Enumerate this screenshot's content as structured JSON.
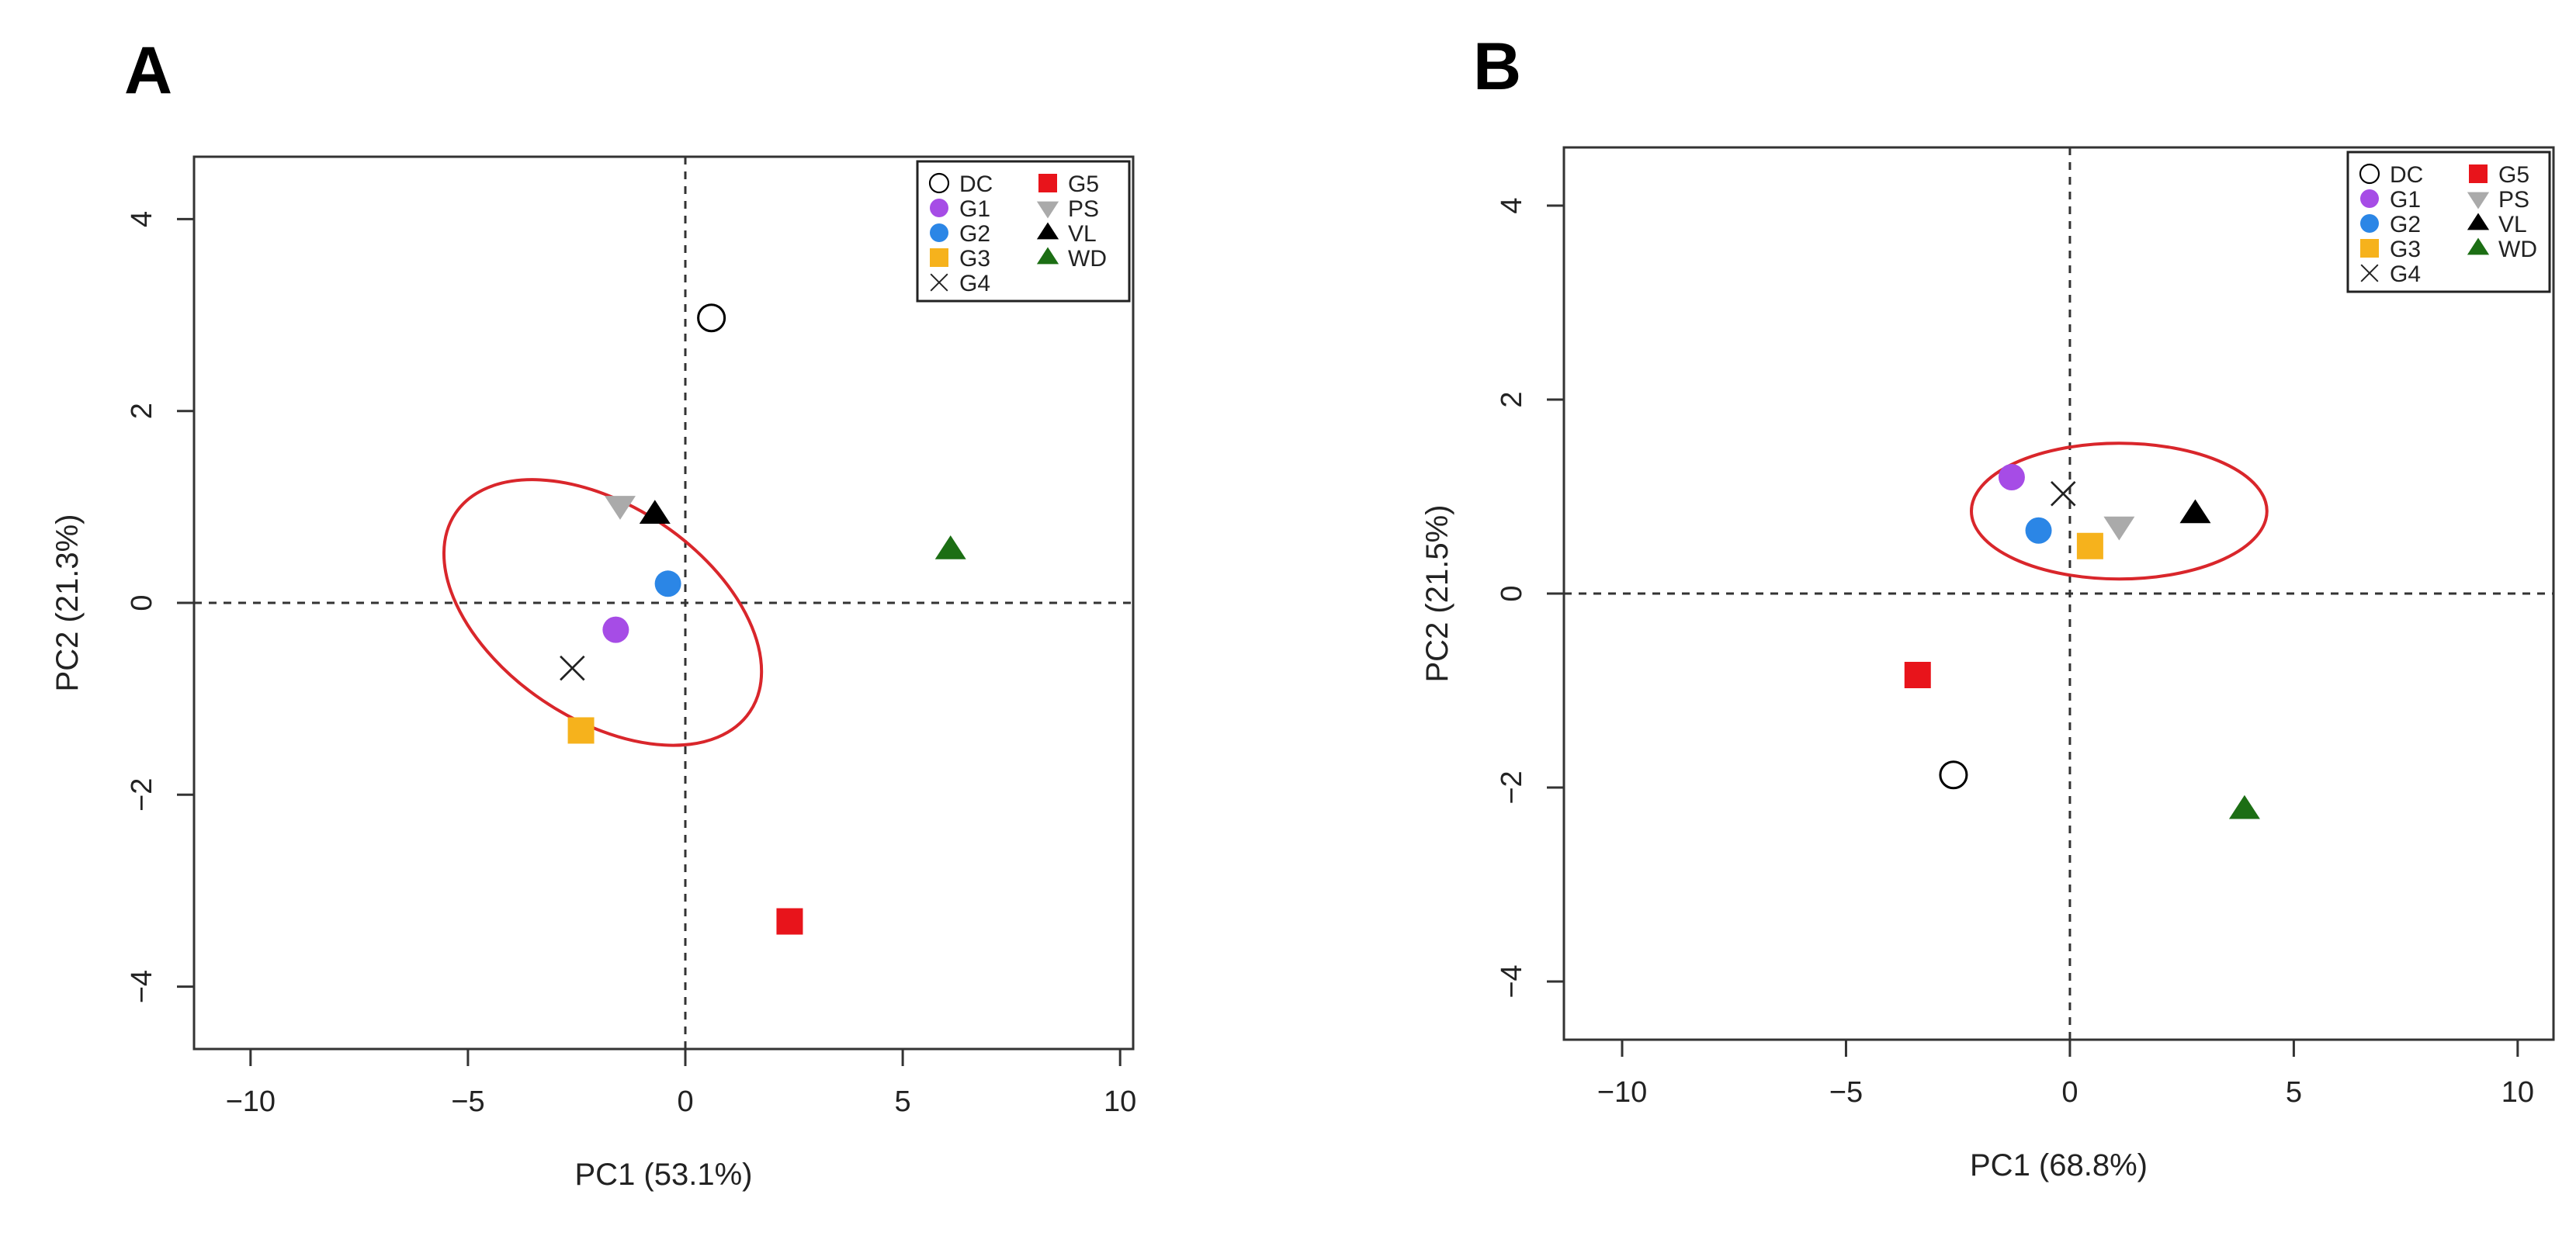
{
  "chart_data": [
    {
      "panel": "A",
      "type": "scatter",
      "xlabel": "PC1 (53.1%)",
      "ylabel": "PC2 (21.3%)",
      "xlim": [
        -11.3,
        10.3
      ],
      "ylim": [
        -4.65,
        4.65
      ],
      "xticks": [
        -10,
        -5,
        0,
        5,
        10
      ],
      "yticks": [
        -4,
        -2,
        0,
        2,
        4
      ],
      "legend_position": "top-right",
      "points": [
        {
          "label": "DC",
          "marker": "open-circle",
          "color": "#000000",
          "x": 0.6,
          "y": 2.97
        },
        {
          "label": "G1",
          "marker": "circle",
          "color": "#a64ce6",
          "x": -1.6,
          "y": -0.28
        },
        {
          "label": "G2",
          "marker": "circle",
          "color": "#2b86e6",
          "x": -0.4,
          "y": 0.2
        },
        {
          "label": "G3",
          "marker": "square",
          "color": "#f6b21c",
          "x": -2.4,
          "y": -1.33
        },
        {
          "label": "G4",
          "marker": "cross",
          "color": "#222222",
          "x": -2.6,
          "y": -0.68
        },
        {
          "label": "G5",
          "marker": "square",
          "color": "#e8141b",
          "x": 2.4,
          "y": -3.32
        },
        {
          "label": "PS",
          "marker": "triangle-down",
          "color": "#aaaaaa",
          "x": -1.5,
          "y": 1.02
        },
        {
          "label": "VL",
          "marker": "triangle",
          "color": "#000000",
          "x": -0.7,
          "y": 0.92
        },
        {
          "label": "WD",
          "marker": "triangle",
          "color": "#1c6e14",
          "x": 6.1,
          "y": 0.55
        }
      ],
      "ellipse": {
        "cx": -1.9,
        "cy": -0.1,
        "rx": 2.45,
        "ry": 1.85,
        "rotation_deg": -56,
        "color": "#d9262b"
      }
    },
    {
      "panel": "B",
      "type": "scatter",
      "xlabel": "PC1 (68.8%)",
      "ylabel": "PC2 (21.5%)",
      "xlim": [
        -11.3,
        10.8
      ],
      "ylim": [
        -4.6,
        4.6
      ],
      "xticks": [
        -10,
        -5,
        0,
        5,
        10
      ],
      "yticks": [
        -4,
        -2,
        0,
        2,
        4
      ],
      "legend_position": "top-right",
      "points": [
        {
          "label": "DC",
          "marker": "open-circle",
          "color": "#000000",
          "x": -2.6,
          "y": -1.87
        },
        {
          "label": "G1",
          "marker": "circle",
          "color": "#a64ce6",
          "x": -1.3,
          "y": 1.2
        },
        {
          "label": "G2",
          "marker": "circle",
          "color": "#2b86e6",
          "x": -0.7,
          "y": 0.65
        },
        {
          "label": "G3",
          "marker": "square",
          "color": "#f6b21c",
          "x": 0.45,
          "y": 0.49
        },
        {
          "label": "G4",
          "marker": "cross",
          "color": "#222222",
          "x": -0.15,
          "y": 1.03
        },
        {
          "label": "G5",
          "marker": "square",
          "color": "#e8141b",
          "x": -3.4,
          "y": -0.84
        },
        {
          "label": "PS",
          "marker": "triangle-down",
          "color": "#aaaaaa",
          "x": 1.1,
          "y": 0.7
        },
        {
          "label": "VL",
          "marker": "triangle",
          "color": "#000000",
          "x": 2.8,
          "y": 0.82
        },
        {
          "label": "WD",
          "marker": "triangle",
          "color": "#1c6e14",
          "x": 3.9,
          "y": -2.23
        }
      ],
      "ellipse": {
        "cx": 1.1,
        "cy": 0.85,
        "rx": 3.3,
        "ry": 0.7,
        "rotation_deg": 0,
        "color": "#d9262b"
      }
    }
  ]
}
